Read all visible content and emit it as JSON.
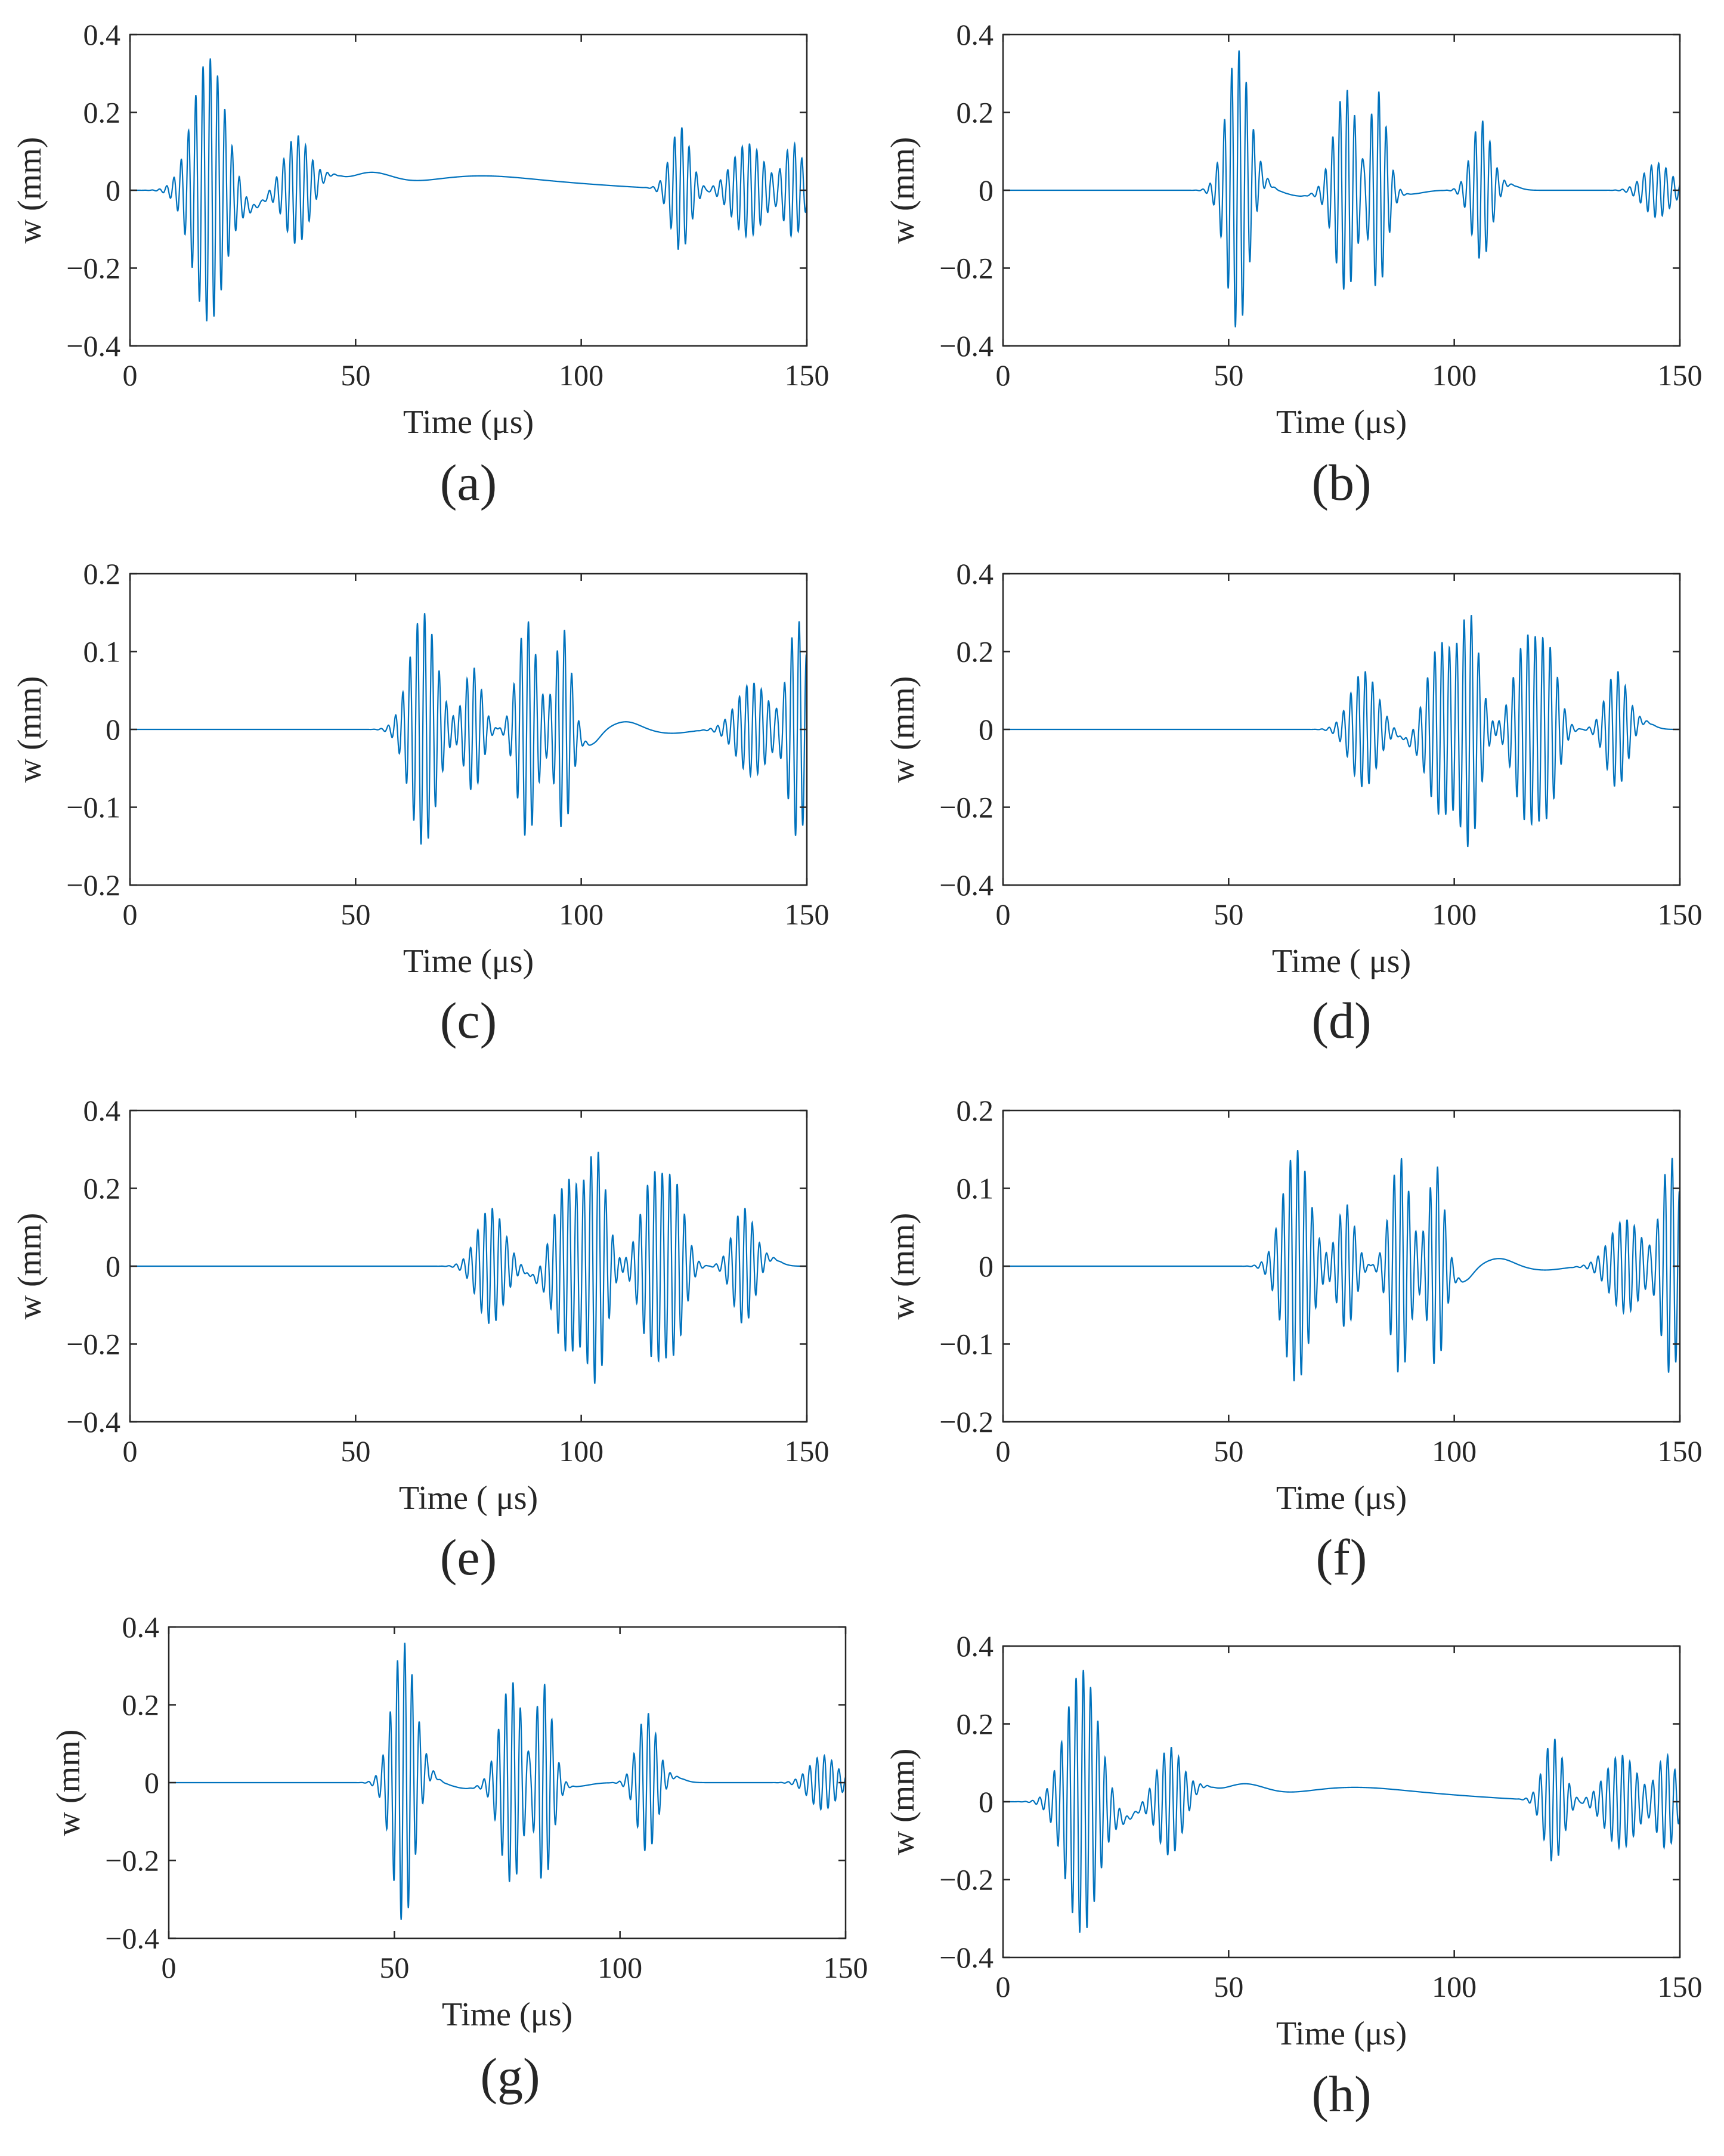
{
  "figure": {
    "line_color": "#0072BD"
  },
  "chart_data": [
    {
      "panel": "a",
      "caption": "(a)",
      "type": "line",
      "xlabel": "Time (μs)",
      "ylabel": "w (mm)",
      "xlim": [
        0,
        150
      ],
      "ylim": [
        -0.4,
        0.4
      ],
      "xticks": [
        "0",
        "50",
        "100",
        "150"
      ],
      "yticks": [
        "−0.4",
        "−0.2",
        "0",
        "0.2",
        "0.4"
      ],
      "series": [
        {
          "name": "w",
          "packets": [
            {
              "t0": 17.5,
              "amp": 0.34,
              "width": 3.6,
              "freq": 0.62,
              "skew": 1.1
            },
            {
              "t0": 37,
              "amp": 0.14,
              "width": 2.8,
              "freq": 0.62,
              "skew": 1.0
            },
            {
              "t0": 122,
              "amp": 0.16,
              "width": 2.2,
              "freq": 0.62,
              "skew": 1.0
            },
            {
              "t0": 137,
              "amp": 0.12,
              "width": 3.5,
              "freq": 0.62,
              "skew": 1.0
            },
            {
              "t0": 147,
              "amp": 0.12,
              "width": 2.2,
              "freq": 0.62,
              "skew": 1.0
            }
          ],
          "slow": [
            {
              "t0": 27,
              "amp": -0.045,
              "width": 2.5
            },
            {
              "t0": 44,
              "amp": 0.03,
              "width": 2.5
            },
            {
              "t0": 53,
              "amp": 0.04,
              "width": 5
            },
            {
              "t0": 75,
              "amp": 0.03,
              "width": 12
            },
            {
              "t0": 95,
              "amp": 0.015,
              "width": 15
            }
          ]
        }
      ]
    },
    {
      "panel": "b",
      "caption": "(b)",
      "type": "line",
      "xlabel": "Time (μs)",
      "ylabel": "w (mm)",
      "xlim": [
        0,
        150
      ],
      "ylim": [
        -0.4,
        0.4
      ],
      "xticks": [
        "0",
        "50",
        "100",
        "150"
      ],
      "yticks": [
        "−0.4",
        "−0.2",
        "0",
        "0.2",
        "0.4"
      ],
      "series": [
        {
          "name": "w",
          "packets": [
            {
              "t0": 52,
              "amp": 0.36,
              "width": 2.5,
              "freq": 0.62,
              "skew": 1.0
            },
            {
              "t0": 76,
              "amp": 0.26,
              "width": 2.6,
              "freq": 0.62,
              "skew": 1.0
            },
            {
              "t0": 83,
              "amp": 0.26,
              "width": 2.0,
              "freq": 0.62,
              "skew": 1.0
            },
            {
              "t0": 106,
              "amp": 0.18,
              "width": 2.2,
              "freq": 0.62,
              "skew": 1.0
            },
            {
              "t0": 145,
              "amp": 0.07,
              "width": 3.0,
              "freq": 0.62,
              "skew": 1.0
            }
          ],
          "slow": [
            {
              "t0": 57,
              "amp": 0.03,
              "width": 2
            },
            {
              "t0": 66,
              "amp": -0.015,
              "width": 3
            },
            {
              "t0": 90,
              "amp": -0.01,
              "width": 3
            },
            {
              "t0": 112,
              "amp": 0.015,
              "width": 2
            }
          ]
        }
      ]
    },
    {
      "panel": "c",
      "caption": "(c)",
      "type": "line",
      "xlabel": "Time (μs)",
      "ylabel": "w (mm)",
      "xlim": [
        0,
        150
      ],
      "ylim": [
        -0.2,
        0.2
      ],
      "xticks": [
        "0",
        "50",
        "100",
        "150"
      ],
      "yticks": [
        "−0.2",
        "−0.1",
        "0",
        "0.1",
        "0.2"
      ],
      "series": [
        {
          "name": "w",
          "packets": [
            {
              "t0": 65,
              "amp": 0.15,
              "width": 3.0,
              "freq": 0.62,
              "skew": 1.0
            },
            {
              "t0": 76,
              "amp": 0.08,
              "width": 2.0,
              "freq": 0.62,
              "skew": 1.0
            },
            {
              "t0": 88,
              "amp": 0.14,
              "width": 2.2,
              "freq": 0.62,
              "skew": 1.0
            },
            {
              "t0": 96,
              "amp": 0.13,
              "width": 1.8,
              "freq": 0.62,
              "skew": 1.0
            },
            {
              "t0": 138,
              "amp": 0.06,
              "width": 3.5,
              "freq": 0.62,
              "skew": 1.0
            },
            {
              "t0": 148,
              "amp": 0.14,
              "width": 2.2,
              "freq": 0.62,
              "skew": 1.0
            }
          ],
          "slow": [
            {
              "t0": 102,
              "amp": -0.02,
              "width": 2
            },
            {
              "t0": 110,
              "amp": 0.01,
              "width": 3
            },
            {
              "t0": 120,
              "amp": -0.005,
              "width": 4
            }
          ]
        }
      ]
    },
    {
      "panel": "d",
      "caption": "(d)",
      "type": "line",
      "xlabel": "Time ( μs)",
      "ylabel": "w (mm)",
      "xlim": [
        0,
        150
      ],
      "ylim": [
        -0.4,
        0.4
      ],
      "xticks": [
        "0",
        "50",
        "100",
        "150"
      ],
      "yticks": [
        "−0.4",
        "−0.2",
        "0",
        "0.2",
        "0.4"
      ],
      "series": [
        {
          "name": "w",
          "packets": [
            {
              "t0": 80,
              "amp": 0.15,
              "width": 3.0,
              "freq": 0.62,
              "skew": 1.0
            },
            {
              "t0": 97,
              "amp": 0.22,
              "width": 3.0,
              "freq": 0.62,
              "skew": 1.0
            },
            {
              "t0": 103.5,
              "amp": 0.28,
              "width": 2.2,
              "freq": 0.62,
              "skew": 1.0
            },
            {
              "t0": 116,
              "amp": 0.23,
              "width": 2.8,
              "freq": 0.62,
              "skew": 1.0
            },
            {
              "t0": 121,
              "amp": 0.18,
              "width": 2.2,
              "freq": 0.62,
              "skew": 1.0
            },
            {
              "t0": 136,
              "amp": 0.15,
              "width": 2.4,
              "freq": 0.62,
              "skew": 1.0
            }
          ],
          "slow": [
            {
              "t0": 90,
              "amp": -0.03,
              "width": 2
            },
            {
              "t0": 142,
              "amp": 0.02,
              "width": 2
            }
          ]
        }
      ]
    },
    {
      "panel": "e",
      "caption": "(e)",
      "type": "line",
      "xlabel": "Time ( μs)",
      "ylabel": "w (mm)",
      "xlim": [
        0,
        150
      ],
      "ylim": [
        -0.4,
        0.4
      ],
      "xticks": [
        "0",
        "50",
        "100",
        "150"
      ],
      "yticks": [
        "−0.4",
        "−0.2",
        "0",
        "0.2",
        "0.4"
      ],
      "series": [
        {
          "name": "w",
          "packets": [
            {
              "t0": 80,
              "amp": 0.15,
              "width": 3.0,
              "freq": 0.62,
              "skew": 1.0
            },
            {
              "t0": 97,
              "amp": 0.22,
              "width": 3.0,
              "freq": 0.62,
              "skew": 1.0
            },
            {
              "t0": 103.5,
              "amp": 0.28,
              "width": 2.2,
              "freq": 0.62,
              "skew": 1.0
            },
            {
              "t0": 116,
              "amp": 0.23,
              "width": 2.8,
              "freq": 0.62,
              "skew": 1.0
            },
            {
              "t0": 121,
              "amp": 0.18,
              "width": 2.2,
              "freq": 0.62,
              "skew": 1.0
            },
            {
              "t0": 136,
              "amp": 0.15,
              "width": 2.4,
              "freq": 0.62,
              "skew": 1.0
            }
          ],
          "slow": [
            {
              "t0": 90,
              "amp": -0.03,
              "width": 2
            },
            {
              "t0": 142,
              "amp": 0.02,
              "width": 2
            }
          ]
        }
      ]
    },
    {
      "panel": "f",
      "caption": "(f)",
      "type": "line",
      "xlabel": "Time (μs)",
      "ylabel": "w (mm)",
      "xlim": [
        0,
        150
      ],
      "ylim": [
        -0.2,
        0.2
      ],
      "xticks": [
        "0",
        "50",
        "100",
        "150"
      ],
      "yticks": [
        "−0.2",
        "−0.1",
        "0",
        "0.1",
        "0.2"
      ],
      "series": [
        {
          "name": "w",
          "packets": [
            {
              "t0": 65,
              "amp": 0.15,
              "width": 3.0,
              "freq": 0.62,
              "skew": 1.0
            },
            {
              "t0": 76,
              "amp": 0.08,
              "width": 2.0,
              "freq": 0.62,
              "skew": 1.0
            },
            {
              "t0": 88,
              "amp": 0.14,
              "width": 2.2,
              "freq": 0.62,
              "skew": 1.0
            },
            {
              "t0": 96,
              "amp": 0.13,
              "width": 1.8,
              "freq": 0.62,
              "skew": 1.0
            },
            {
              "t0": 138,
              "amp": 0.06,
              "width": 3.5,
              "freq": 0.62,
              "skew": 1.0
            },
            {
              "t0": 148,
              "amp": 0.14,
              "width": 2.2,
              "freq": 0.62,
              "skew": 1.0
            }
          ],
          "slow": [
            {
              "t0": 102,
              "amp": -0.02,
              "width": 2
            },
            {
              "t0": 110,
              "amp": 0.01,
              "width": 3
            },
            {
              "t0": 120,
              "amp": -0.005,
              "width": 4
            }
          ]
        }
      ]
    },
    {
      "panel": "g",
      "caption": "(g)",
      "type": "line",
      "xlabel": "Time (μs)",
      "ylabel": "w (mm)",
      "xlim": [
        0,
        150
      ],
      "ylim": [
        -0.4,
        0.4
      ],
      "xticks": [
        "0",
        "50",
        "100",
        "150"
      ],
      "yticks": [
        "−0.4",
        "−0.2",
        "0",
        "0.2",
        "0.4"
      ],
      "series": [
        {
          "name": "w",
          "packets": [
            {
              "t0": 52,
              "amp": 0.36,
              "width": 2.5,
              "freq": 0.62,
              "skew": 1.0
            },
            {
              "t0": 76,
              "amp": 0.26,
              "width": 2.6,
              "freq": 0.62,
              "skew": 1.0
            },
            {
              "t0": 83,
              "amp": 0.26,
              "width": 2.0,
              "freq": 0.62,
              "skew": 1.0
            },
            {
              "t0": 106,
              "amp": 0.18,
              "width": 2.2,
              "freq": 0.62,
              "skew": 1.0
            },
            {
              "t0": 145,
              "amp": 0.07,
              "width": 3.0,
              "freq": 0.62,
              "skew": 1.0
            }
          ],
          "slow": [
            {
              "t0": 57,
              "amp": 0.03,
              "width": 2
            },
            {
              "t0": 66,
              "amp": -0.015,
              "width": 3
            },
            {
              "t0": 90,
              "amp": -0.01,
              "width": 3
            },
            {
              "t0": 112,
              "amp": 0.015,
              "width": 2
            }
          ]
        }
      ]
    },
    {
      "panel": "h",
      "caption": "(h)",
      "type": "line",
      "xlabel": "Time (μs)",
      "ylabel": "w (mm)",
      "xlim": [
        0,
        150
      ],
      "ylim": [
        -0.4,
        0.4
      ],
      "xticks": [
        "0",
        "50",
        "100",
        "150"
      ],
      "yticks": [
        "−0.4",
        "−0.2",
        "0",
        "0.2",
        "0.4"
      ],
      "series": [
        {
          "name": "w",
          "packets": [
            {
              "t0": 17.5,
              "amp": 0.34,
              "width": 3.6,
              "freq": 0.62,
              "skew": 1.1
            },
            {
              "t0": 37,
              "amp": 0.14,
              "width": 2.8,
              "freq": 0.62,
              "skew": 1.0
            },
            {
              "t0": 122,
              "amp": 0.16,
              "width": 2.2,
              "freq": 0.62,
              "skew": 1.0
            },
            {
              "t0": 137,
              "amp": 0.12,
              "width": 3.5,
              "freq": 0.62,
              "skew": 1.0
            },
            {
              "t0": 147,
              "amp": 0.12,
              "width": 2.2,
              "freq": 0.62,
              "skew": 1.0
            }
          ],
          "slow": [
            {
              "t0": 27,
              "amp": -0.045,
              "width": 2.5
            },
            {
              "t0": 44,
              "amp": 0.03,
              "width": 2.5
            },
            {
              "t0": 53,
              "amp": 0.04,
              "width": 5
            },
            {
              "t0": 75,
              "amp": 0.03,
              "width": 12
            },
            {
              "t0": 95,
              "amp": 0.015,
              "width": 15
            }
          ]
        }
      ]
    }
  ]
}
